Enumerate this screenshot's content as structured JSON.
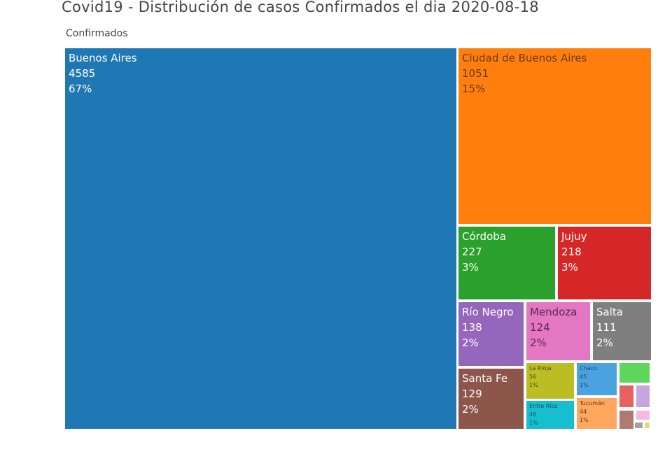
{
  "chart_data": {
    "type": "treemap",
    "title": "Covid19 - Distribución de casos Confirmados el dia  2020-08-18",
    "root_label": "Confirmados",
    "items": [
      {
        "name": "Buenos Aires",
        "value": 4585,
        "percent": "67%",
        "color": "#1f77b4",
        "text": "#ffffff"
      },
      {
        "name": "Ciudad de Buenos Aires",
        "value": 1051,
        "percent": "15%",
        "color": "#ff7f0e",
        "text": "#6b3a08"
      },
      {
        "name": "Córdoba",
        "value": 227,
        "percent": "3%",
        "color": "#2ca02c",
        "text": "#ffffff"
      },
      {
        "name": "Jujuy",
        "value": 218,
        "percent": "3%",
        "color": "#d62728",
        "text": "#ffffff"
      },
      {
        "name": "Río Negro",
        "value": 138,
        "percent": "2%",
        "color": "#9467bd",
        "text": "#ffffff"
      },
      {
        "name": "Mendoza",
        "value": 124,
        "percent": "2%",
        "color": "#e377c2",
        "text": "#5a2a4e"
      },
      {
        "name": "Salta",
        "value": 111,
        "percent": "2%",
        "color": "#7f7f7f",
        "text": "#ffffff"
      },
      {
        "name": "Santa Fe",
        "value": 129,
        "percent": "2%",
        "color": "#8c564b",
        "text": "#ffffff"
      },
      {
        "name": "La Rioja",
        "value": 56,
        "percent": "1%",
        "color": "#bcbd22",
        "text": "#4a4a0a"
      },
      {
        "name": "Chaco",
        "value": 45,
        "percent": "1%",
        "color": "#4aa3df",
        "text": "#1a4a6a"
      },
      {
        "name": "Entre Ríos",
        "value": 46,
        "percent": "1%",
        "color": "#17becf",
        "text": "#0a5560"
      },
      {
        "name": "Tucumán",
        "value": 44,
        "percent": "1%",
        "color": "#ffa75e",
        "text": "#6b3a08"
      }
    ],
    "unlabeled_tiles": [
      {
        "color": "#5cd65c"
      },
      {
        "color": "#e86060"
      },
      {
        "color": "#c7a6e0"
      },
      {
        "color": "#b07a70"
      },
      {
        "color": "#f5b8e0"
      },
      {
        "color": "#a0a0a8"
      },
      {
        "color": "#dbdb8d"
      }
    ]
  }
}
